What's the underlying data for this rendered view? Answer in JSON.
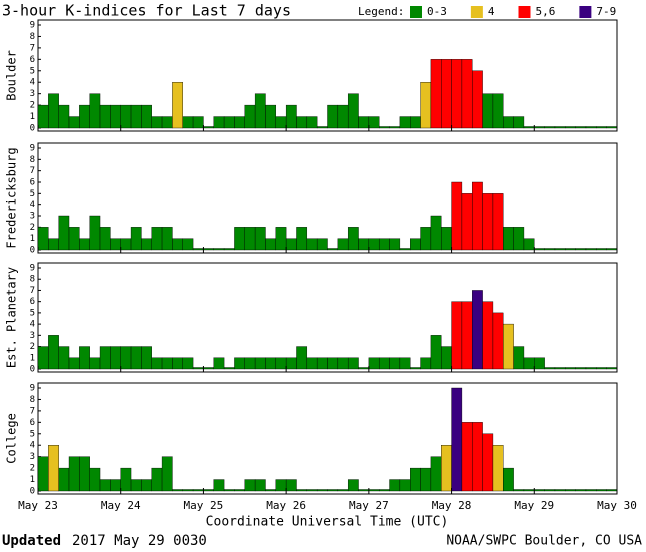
{
  "title": "3-hour K-indices for Last 7 days",
  "legend": {
    "label": "Legend:",
    "items": [
      {
        "name": "0-3",
        "color": "#008800",
        "from": 0,
        "to": 3
      },
      {
        "name": "4",
        "color": "#e6c020",
        "from": 4,
        "to": 4
      },
      {
        "name": "5,6",
        "color": "#ff0000",
        "from": 5,
        "to": 6
      },
      {
        "name": "7-9",
        "color": "#3a0080",
        "from": 7,
        "to": 9
      }
    ]
  },
  "x_axis": {
    "label": "Coordinate Universal Time (UTC)",
    "xlim": [
      0,
      56
    ],
    "xticks": [
      {
        "value": 0,
        "label": "May 23"
      },
      {
        "value": 8,
        "label": "May 24"
      },
      {
        "value": 16,
        "label": "May 25"
      },
      {
        "value": 24,
        "label": "May 26"
      },
      {
        "value": 32,
        "label": "May 27"
      },
      {
        "value": 40,
        "label": "May 28"
      },
      {
        "value": 48,
        "label": "May 29"
      },
      {
        "value": 56,
        "label": "May 30"
      }
    ]
  },
  "chart_data": [
    {
      "type": "bar",
      "ylabel": "Boulder",
      "ylim": [
        0,
        9
      ],
      "yticks": [
        0,
        1,
        2,
        3,
        4,
        5,
        6,
        7,
        8,
        9
      ],
      "values": [
        2,
        3,
        2,
        1,
        2,
        3,
        2,
        2,
        2,
        2,
        2,
        1,
        1,
        4,
        1,
        1,
        0,
        1,
        1,
        1,
        2,
        3,
        2,
        1,
        2,
        1,
        1,
        0,
        2,
        2,
        3,
        1,
        1,
        0,
        0,
        1,
        1,
        4,
        6,
        6,
        6,
        6,
        5,
        3,
        3,
        1,
        1,
        0,
        0,
        0,
        0,
        0,
        0,
        0,
        0,
        0
      ]
    },
    {
      "type": "bar",
      "ylabel": "Fredericksburg",
      "ylim": [
        0,
        9
      ],
      "yticks": [
        0,
        1,
        2,
        3,
        4,
        5,
        6,
        7,
        8,
        9
      ],
      "values": [
        2,
        1,
        3,
        2,
        1,
        3,
        2,
        1,
        1,
        2,
        1,
        2,
        2,
        1,
        1,
        0,
        0,
        0,
        0,
        2,
        2,
        2,
        1,
        2,
        1,
        2,
        1,
        1,
        0,
        1,
        2,
        1,
        1,
        1,
        1,
        0,
        1,
        2,
        3,
        2,
        6,
        5,
        6,
        5,
        5,
        2,
        2,
        1,
        0,
        0,
        0,
        0,
        0,
        0,
        0,
        0
      ]
    },
    {
      "type": "bar",
      "ylabel": "Est. Planetary",
      "ylim": [
        0,
        9
      ],
      "yticks": [
        0,
        1,
        2,
        3,
        4,
        5,
        6,
        7,
        8,
        9
      ],
      "values": [
        2,
        3,
        2,
        1,
        2,
        1,
        2,
        2,
        2,
        2,
        2,
        1,
        1,
        1,
        1,
        0,
        0,
        1,
        0,
        1,
        1,
        1,
        1,
        1,
        1,
        2,
        1,
        1,
        1,
        1,
        1,
        0,
        1,
        1,
        1,
        1,
        0,
        1,
        3,
        2,
        6,
        6,
        7,
        6,
        5,
        4,
        2,
        1,
        1,
        0,
        0,
        0,
        0,
        0,
        0,
        0
      ]
    },
    {
      "type": "bar",
      "ylabel": "College",
      "ylim": [
        0,
        9
      ],
      "yticks": [
        0,
        1,
        2,
        3,
        4,
        5,
        6,
        7,
        8,
        9
      ],
      "values": [
        3,
        4,
        2,
        3,
        3,
        2,
        1,
        1,
        2,
        1,
        1,
        2,
        3,
        0,
        0,
        0,
        0,
        1,
        0,
        0,
        1,
        1,
        0,
        1,
        1,
        0,
        0,
        0,
        0,
        0,
        1,
        0,
        0,
        0,
        1,
        1,
        2,
        2,
        3,
        4,
        9,
        6,
        6,
        5,
        4,
        2,
        0,
        0,
        0,
        0,
        0,
        0,
        0,
        0,
        0,
        0
      ]
    }
  ],
  "footer": {
    "updated_label": "Updated",
    "updated_time": "2017 May 29 0030",
    "credit": "NOAA/SWPC Boulder, CO USA"
  }
}
